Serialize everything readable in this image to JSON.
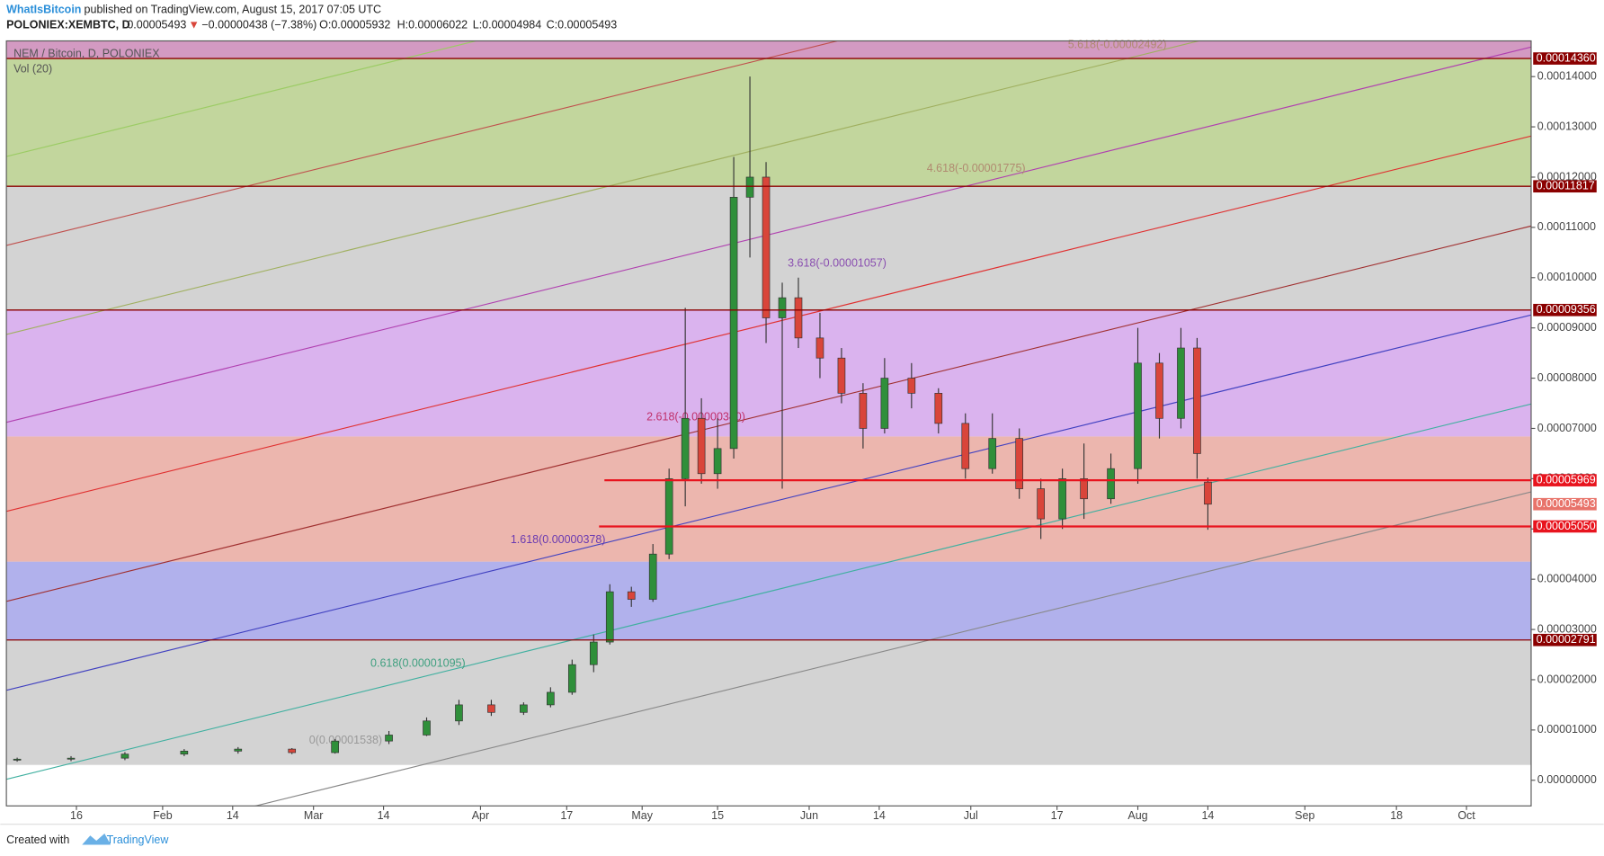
{
  "header": {
    "author": "WhatIsBitcoin",
    "published": "published on TradingView.com, August 15, 2017 07:05 UTC",
    "symbol": "POLONIEX:XEMBTC, D",
    "last": "0.00005493",
    "arrow": "▼",
    "change": "−0.00000438 (−7.38%)",
    "ohlc": [
      "O:0.00005932",
      "H:0.00006022",
      "L:0.00004984",
      "C:0.00005493"
    ]
  },
  "footer": {
    "created": "Created with",
    "brand": "TradingView"
  },
  "chart_data": {
    "type": "candlestick",
    "title": "NEM / Bitcoin, D, POLONIEX",
    "indicator": "Vol (20)",
    "xlim": [
      "2017-01-03",
      "2017-10-13"
    ],
    "xticks": [
      {
        "value": "2017-01-16",
        "label": "16"
      },
      {
        "value": "2017-02-01",
        "label": "Feb"
      },
      {
        "value": "2017-02-14",
        "label": "14"
      },
      {
        "value": "2017-03-01",
        "label": "Mar"
      },
      {
        "value": "2017-03-14",
        "label": "14"
      },
      {
        "value": "2017-04-01",
        "label": "Apr"
      },
      {
        "value": "2017-04-17",
        "label": "17"
      },
      {
        "value": "2017-05-01",
        "label": "May"
      },
      {
        "value": "2017-05-15",
        "label": "15"
      },
      {
        "value": "2017-06-01",
        "label": "Jun"
      },
      {
        "value": "2017-06-14",
        "label": "14"
      },
      {
        "value": "2017-07-01",
        "label": "Jul"
      },
      {
        "value": "2017-07-17",
        "label": "17"
      },
      {
        "value": "2017-08-01",
        "label": "Aug"
      },
      {
        "value": "2017-08-14",
        "label": "14"
      },
      {
        "value": "2017-09-01",
        "label": "Sep"
      },
      {
        "value": "2017-09-18",
        "label": "18"
      },
      {
        "value": "2017-10-01",
        "label": "Oct"
      }
    ],
    "ylim": [
      -5.1e-06,
      0.0001471
    ],
    "yticks": [
      {
        "value": 0,
        "label": "0.00000000"
      },
      {
        "value": 1e-05,
        "label": "0.00001000"
      },
      {
        "value": 2e-05,
        "label": "0.00002000"
      },
      {
        "value": 3e-05,
        "label": "0.00003000"
      },
      {
        "value": 4e-05,
        "label": "0.00004000"
      },
      {
        "value": 5e-05,
        "label": "0.00005000"
      },
      {
        "value": 6e-05,
        "label": "0.00006000"
      },
      {
        "value": 7e-05,
        "label": "0.00007000"
      },
      {
        "value": 8e-05,
        "label": "0.00008000"
      },
      {
        "value": 9e-05,
        "label": "0.00009000"
      },
      {
        "value": 0.0001,
        "label": "0.00010000"
      },
      {
        "value": 0.00011,
        "label": "0.00011000"
      },
      {
        "value": 0.00012,
        "label": "0.00012000"
      },
      {
        "value": 0.00013,
        "label": "0.00013000"
      },
      {
        "value": 0.00014,
        "label": "0.00014000"
      }
    ],
    "up_color": "#2f8f3a",
    "down_color": "#d9453a",
    "bands": [
      {
        "low": 3.05e-06,
        "color": "#d3d3d3"
      },
      {
        "low": 2.791e-05,
        "color": "#b1b1ec"
      },
      {
        "low": 4.35e-05,
        "color": "#ecb6ae"
      },
      {
        "low": 6.84e-05,
        "color": "#dab3ee"
      },
      {
        "low": 9.356e-05,
        "color": "#d3d3d3"
      },
      {
        "low": 0.00011817,
        "color": "#c2d69d"
      },
      {
        "low": 0.0001436,
        "color": "#d39ac2"
      }
    ],
    "levels": [
      {
        "value": 0.0001436,
        "label": "0.00014360",
        "color": "#8b0000"
      },
      {
        "value": 0.00011817,
        "label": "0.00011817",
        "color": "#8b0000"
      },
      {
        "value": 9.356e-05,
        "label": "0.00009356",
        "color": "#8b0000"
      },
      {
        "value": 5.969e-05,
        "label": "0.00005969",
        "color": "#e8141e",
        "start": "2017-04-24"
      },
      {
        "value": 5.05e-05,
        "label": "0.00005050",
        "color": "#e8141e",
        "start": "2017-04-23"
      },
      {
        "value": 2.791e-05,
        "label": "0.00002791",
        "color": "#8b0000"
      }
    ],
    "last_price": {
      "value": 5.493e-05,
      "label": "0.00005493",
      "color": "#e8736a"
    },
    "fib_labels": [
      {
        "text": "5.618(-0.00002492)",
        "color": "#b08a70"
      },
      {
        "text": "4.618(-0.00001775)",
        "color": "#b08a70"
      },
      {
        "text": "3.618(-0.00001057)",
        "color": "#8a4fb0"
      },
      {
        "text": "2.618(-0.00000340)",
        "color": "#c0306a"
      },
      {
        "text": "1.618(0.00000378)",
        "color": "#6a3ab0"
      },
      {
        "text": "0.618(0.00001095)",
        "color": "#40a080"
      },
      {
        "text": "0(0.00001538)",
        "color": "#999999"
      }
    ],
    "candles": [
      [
        "2017-01-05",
        4e-06,
        4.5e-06,
        3.7e-06,
        4.2e-06
      ],
      [
        "2017-01-15",
        4.2e-06,
        4.8e-06,
        3.8e-06,
        4.4e-06
      ],
      [
        "2017-01-25",
        4.4e-06,
        5.6e-06,
        4e-06,
        5.2e-06
      ],
      [
        "2017-02-05",
        5.2e-06,
        6.2e-06,
        4.8e-06,
        5.8e-06
      ],
      [
        "2017-02-15",
        5.8e-06,
        6.6e-06,
        5.3e-06,
        6.2e-06
      ],
      [
        "2017-02-25",
        6.2e-06,
        6.4e-06,
        5.2e-06,
        5.5e-06
      ],
      [
        "2017-03-05",
        5.5e-06,
        8.2e-06,
        5.3e-06,
        7.8e-06
      ],
      [
        "2017-03-15",
        7.8e-06,
        9.8e-06,
        7.2e-06,
        9e-06
      ],
      [
        "2017-03-22",
        9e-06,
        1.25e-05,
        8.8e-06,
        1.18e-05
      ],
      [
        "2017-03-28",
        1.18e-05,
        1.6e-05,
        1.1e-05,
        1.5e-05
      ],
      [
        "2017-04-03",
        1.5e-05,
        1.6e-05,
        1.28e-05,
        1.35e-05
      ],
      [
        "2017-04-09",
        1.35e-05,
        1.55e-05,
        1.3e-05,
        1.5e-05
      ],
      [
        "2017-04-14",
        1.5e-05,
        1.85e-05,
        1.45e-05,
        1.75e-05
      ],
      [
        "2017-04-18",
        1.75e-05,
        2.4e-05,
        1.7e-05,
        2.3e-05
      ],
      [
        "2017-04-22",
        2.3e-05,
        2.9e-05,
        2.15e-05,
        2.75e-05
      ],
      [
        "2017-04-25",
        2.75e-05,
        3.9e-05,
        2.7e-05,
        3.75e-05
      ],
      [
        "2017-04-29",
        3.75e-05,
        3.85e-05,
        3.45e-05,
        3.6e-05
      ],
      [
        "2017-05-03",
        3.6e-05,
        4.7e-05,
        3.55e-05,
        4.5e-05
      ],
      [
        "2017-05-06",
        4.5e-05,
        6.2e-05,
        4.4e-05,
        6e-05
      ],
      [
        "2017-05-09",
        6e-05,
        9.4e-05,
        5.45e-05,
        7.2e-05
      ],
      [
        "2017-05-12",
        7.2e-05,
        7.6e-05,
        5.9e-05,
        6.1e-05
      ],
      [
        "2017-05-15",
        6.1e-05,
        7.2e-05,
        5.8e-05,
        6.6e-05
      ],
      [
        "2017-05-18",
        6.6e-05,
        0.000124,
        6.4e-05,
        0.000116
      ],
      [
        "2017-05-21",
        0.000116,
        0.00014,
        0.000104,
        0.00012
      ],
      [
        "2017-05-24",
        0.00012,
        0.000123,
        8.7e-05,
        9.2e-05
      ],
      [
        "2017-05-27",
        9.2e-05,
        9.9e-05,
        5.8e-05,
        9.6e-05
      ],
      [
        "2017-05-30",
        9.6e-05,
        0.0001,
        8.6e-05,
        8.8e-05
      ],
      [
        "2017-06-03",
        8.8e-05,
        9.3e-05,
        8e-05,
        8.4e-05
      ],
      [
        "2017-06-07",
        8.4e-05,
        8.6e-05,
        7.5e-05,
        7.7e-05
      ],
      [
        "2017-06-11",
        7.7e-05,
        7.9e-05,
        6.6e-05,
        7e-05
      ],
      [
        "2017-06-15",
        7e-05,
        8.4e-05,
        6.9e-05,
        8e-05
      ],
      [
        "2017-06-20",
        8e-05,
        8.3e-05,
        7.4e-05,
        7.7e-05
      ],
      [
        "2017-06-25",
        7.7e-05,
        7.8e-05,
        6.9e-05,
        7.1e-05
      ],
      [
        "2017-06-30",
        7.1e-05,
        7.3e-05,
        6e-05,
        6.2e-05
      ],
      [
        "2017-07-05",
        6.2e-05,
        7.3e-05,
        6.1e-05,
        6.8e-05
      ],
      [
        "2017-07-10",
        6.8e-05,
        7e-05,
        5.6e-05,
        5.8e-05
      ],
      [
        "2017-07-14",
        5.8e-05,
        6e-05,
        4.8e-05,
        5.2e-05
      ],
      [
        "2017-07-18",
        5.2e-05,
        6.2e-05,
        5e-05,
        6e-05
      ],
      [
        "2017-07-22",
        6e-05,
        6.7e-05,
        5.2e-05,
        5.6e-05
      ],
      [
        "2017-07-27",
        5.6e-05,
        6.5e-05,
        5.5e-05,
        6.2e-05
      ],
      [
        "2017-08-01",
        6.2e-05,
        9e-05,
        5.9e-05,
        8.3e-05
      ],
      [
        "2017-08-05",
        8.3e-05,
        8.5e-05,
        6.8e-05,
        7.2e-05
      ],
      [
        "2017-08-09",
        7.2e-05,
        9e-05,
        7e-05,
        8.6e-05
      ],
      [
        "2017-08-12",
        8.6e-05,
        8.8e-05,
        6e-05,
        6.5e-05
      ],
      [
        "2017-08-14",
        5.932e-05,
        6.022e-05,
        4.984e-05,
        5.493e-05
      ]
    ]
  }
}
